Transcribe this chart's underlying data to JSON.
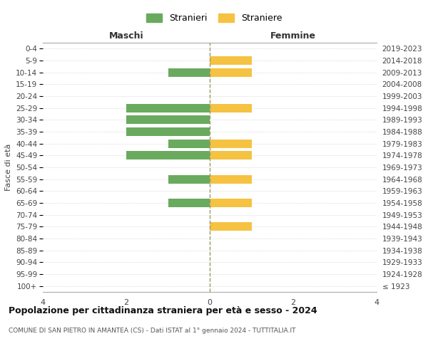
{
  "age_groups": [
    "100+",
    "95-99",
    "90-94",
    "85-89",
    "80-84",
    "75-79",
    "70-74",
    "65-69",
    "60-64",
    "55-59",
    "50-54",
    "45-49",
    "40-44",
    "35-39",
    "30-34",
    "25-29",
    "20-24",
    "15-19",
    "10-14",
    "5-9",
    "0-4"
  ],
  "birth_years": [
    "≤ 1923",
    "1924-1928",
    "1929-1933",
    "1934-1938",
    "1939-1943",
    "1944-1948",
    "1949-1953",
    "1954-1958",
    "1959-1963",
    "1964-1968",
    "1969-1973",
    "1974-1978",
    "1979-1983",
    "1984-1988",
    "1989-1993",
    "1994-1998",
    "1999-2003",
    "2004-2008",
    "2009-2013",
    "2014-2018",
    "2019-2023"
  ],
  "maschi": [
    0,
    0,
    0,
    0,
    0,
    0,
    0,
    1,
    0,
    1,
    0,
    2,
    1,
    2,
    2,
    2,
    0,
    0,
    1,
    0,
    0
  ],
  "femmine": [
    0,
    0,
    0,
    0,
    0,
    1,
    0,
    1,
    0,
    1,
    0,
    1,
    1,
    0,
    0,
    1,
    0,
    0,
    1,
    1,
    0
  ],
  "color_maschi": "#6aaa5e",
  "color_femmine": "#f5c242",
  "title": "Popolazione per cittadinanza straniera per età e sesso - 2024",
  "subtitle": "COMUNE DI SAN PIETRO IN AMANTEA (CS) - Dati ISTAT al 1° gennaio 2024 - TUTTITALIA.IT",
  "legend_maschi": "Stranieri",
  "legend_femmine": "Straniere",
  "xlabel_left": "Maschi",
  "xlabel_right": "Femmine",
  "ylabel_left": "Fasce di età",
  "xlim": 4,
  "background_color": "#ffffff",
  "grid_color": "#cccccc"
}
